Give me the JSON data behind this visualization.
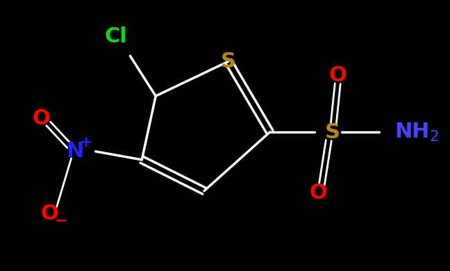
{
  "background_color": "#000000",
  "figsize": [
    6.48,
    3.9
  ],
  "dpi": 100,
  "colors": {
    "bond": "#ffffff",
    "S_ring": "#b8860b",
    "S_sulfonamide": "#b8860b",
    "Cl": "#00dd00",
    "N": "#2222ff",
    "O": "#ff0000",
    "NH2": "#4444ff",
    "bg": "#000000"
  },
  "font_size": 22,
  "font_size_small": 16,
  "lw": 2.5
}
